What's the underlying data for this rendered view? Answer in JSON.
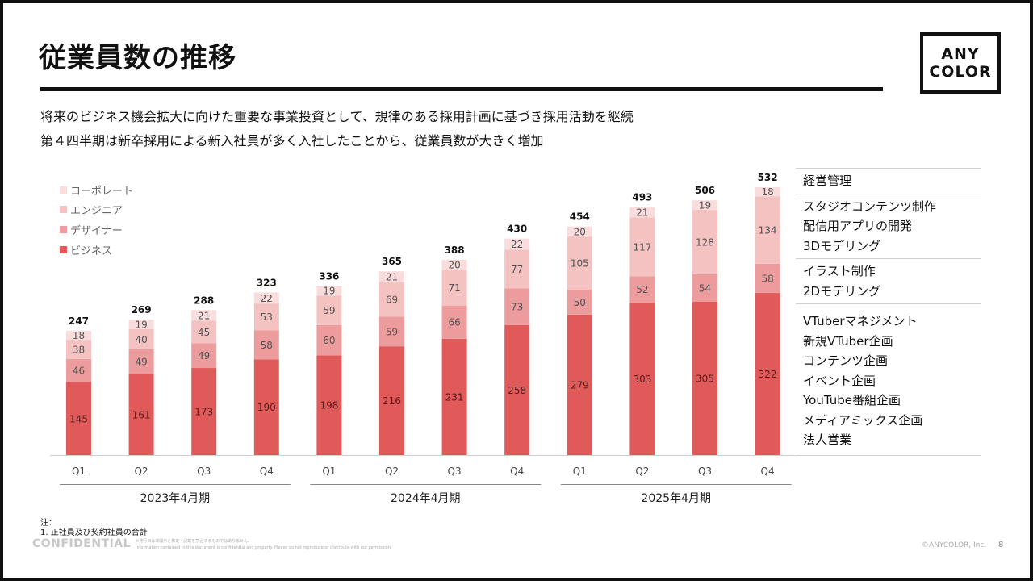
{
  "header": {
    "title": "従業員数の推移",
    "logo_lines": [
      "ANY",
      "COLOR"
    ],
    "subtitle_lines": [
      "将来のビジネス機会拡大に向けた重要な事業投資として、規律のある採用計画に基づき採用活動を継続",
      "第４四半期は新卒採用による新入社員が多く入社したことから、従業員数が大きく増加"
    ]
  },
  "chart_data": {
    "type": "bar",
    "stacked": true,
    "categories": [
      "Q1",
      "Q2",
      "Q3",
      "Q4",
      "Q1",
      "Q2",
      "Q3",
      "Q4",
      "Q1",
      "Q2",
      "Q3",
      "Q4"
    ],
    "groups": [
      {
        "label": "2023年4月期",
        "start": 0,
        "end": 3
      },
      {
        "label": "2024年4月期",
        "start": 4,
        "end": 7
      },
      {
        "label": "2025年4月期",
        "start": 8,
        "end": 11
      }
    ],
    "series": [
      {
        "name": "ビジネス",
        "color": "#e05a5a",
        "values": [
          145,
          161,
          173,
          190,
          198,
          216,
          231,
          258,
          279,
          303,
          305,
          322
        ]
      },
      {
        "name": "デザイナー",
        "color": "#ec9c9c",
        "values": [
          46,
          49,
          49,
          58,
          60,
          59,
          66,
          73,
          50,
          52,
          54,
          58
        ]
      },
      {
        "name": "エンジニア",
        "color": "#f5c2c2",
        "values": [
          38,
          40,
          45,
          53,
          59,
          69,
          71,
          77,
          105,
          117,
          128,
          134
        ]
      },
      {
        "name": "コーポレート",
        "color": "#f9dcdc",
        "values": [
          18,
          19,
          21,
          22,
          19,
          21,
          20,
          22,
          20,
          21,
          19,
          18
        ]
      }
    ],
    "totals": [
      247,
      269,
      288,
      323,
      336,
      365,
      388,
      430,
      454,
      493,
      506,
      532
    ],
    "ylim": [
      0,
      532
    ],
    "legend_position": "top-left",
    "grid": false
  },
  "departments": [
    {
      "series": "コーポレート",
      "items": [
        "経営管理"
      ]
    },
    {
      "series": "エンジニア",
      "items": [
        "スタジオコンテンツ制作",
        "配信用アプリの開発",
        "3Dモデリング"
      ]
    },
    {
      "series": "デザイナー",
      "items": [
        "イラスト制作",
        "2Dモデリング"
      ]
    },
    {
      "series": "ビジネス",
      "items": [
        "VTuberマネジメント",
        "新規VTuber企画",
        "コンテンツ企画",
        "イベント企画",
        "YouTube番組企画",
        "メディアミックス企画",
        "法人営業"
      ]
    }
  ],
  "footer": {
    "note_head": "注：",
    "note_1": "1. 正社員及び契約社員の合計",
    "confidential": "CONFIDENTIAL",
    "fine_jp": "※発行日は非開示と推定・記載を禁止するものではありません。",
    "fine_en": "Information contained in this document is confidential and property. Please do not reproduce or distribute with out permission.",
    "copyright": "©ANYCOLOR, Inc.",
    "page_number": "8"
  }
}
